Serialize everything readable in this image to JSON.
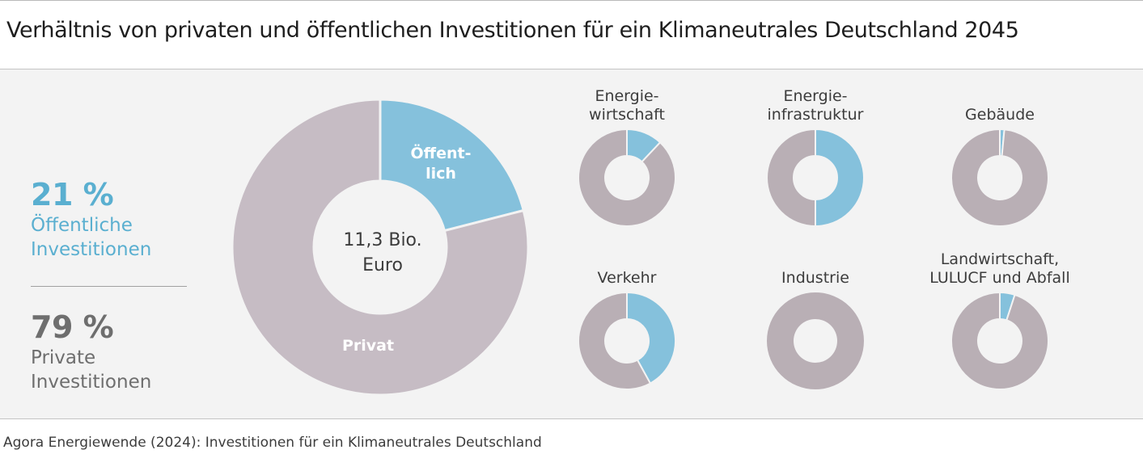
{
  "title": "Verhältnis von privaten und öffentlichen Investitionen für ein Klimaneutrales Deutschland 2045",
  "source": "Agora Energiewende (2024): Investitionen für ein Klimaneutrales Deutschland",
  "colors": {
    "public": "#85c1dc",
    "private": "#c6bcc4",
    "small_private": "#b9afb5",
    "kpi_public": "#5aafd0",
    "kpi_private": "#6e6e6e"
  },
  "kpis": {
    "public": {
      "value": "21 %",
      "label_line1": "Öffentliche",
      "label_line2": "Investitionen"
    },
    "private": {
      "value": "79 %",
      "label_line1": "Private",
      "label_line2": "Investitionen"
    }
  },
  "chart_data": [
    {
      "type": "pie",
      "variant": "donut",
      "center_label_line1": "11,3 Bio.",
      "center_label_line2": "Euro",
      "categories": [
        "Öffentlich",
        "Privat"
      ],
      "segment_labels": {
        "public_line1": "Öffent-",
        "public_line2": "lich",
        "private": "Privat"
      },
      "values": [
        21,
        79
      ]
    },
    {
      "type": "pie",
      "variant": "donut-small-multiples",
      "series_order": [
        "Öffentlich",
        "Privat"
      ],
      "panels": [
        {
          "label_line1": "Energie-",
          "label_line2": "wirtschaft",
          "public_share": 0.12
        },
        {
          "label_line1": "Energie-",
          "label_line2": "infrastruktur",
          "public_share": 0.5
        },
        {
          "label_line1": "",
          "label_line2": "Gebäude",
          "public_share": 0.015
        },
        {
          "label_line1": "",
          "label_line2": "Verkehr",
          "public_share": 0.42
        },
        {
          "label_line1": "",
          "label_line2": "Industrie",
          "public_share": 0.0
        },
        {
          "label_line1": "Landwirtschaft,",
          "label_line2": "LULUCF und Abfall",
          "public_share": 0.05
        }
      ]
    }
  ]
}
